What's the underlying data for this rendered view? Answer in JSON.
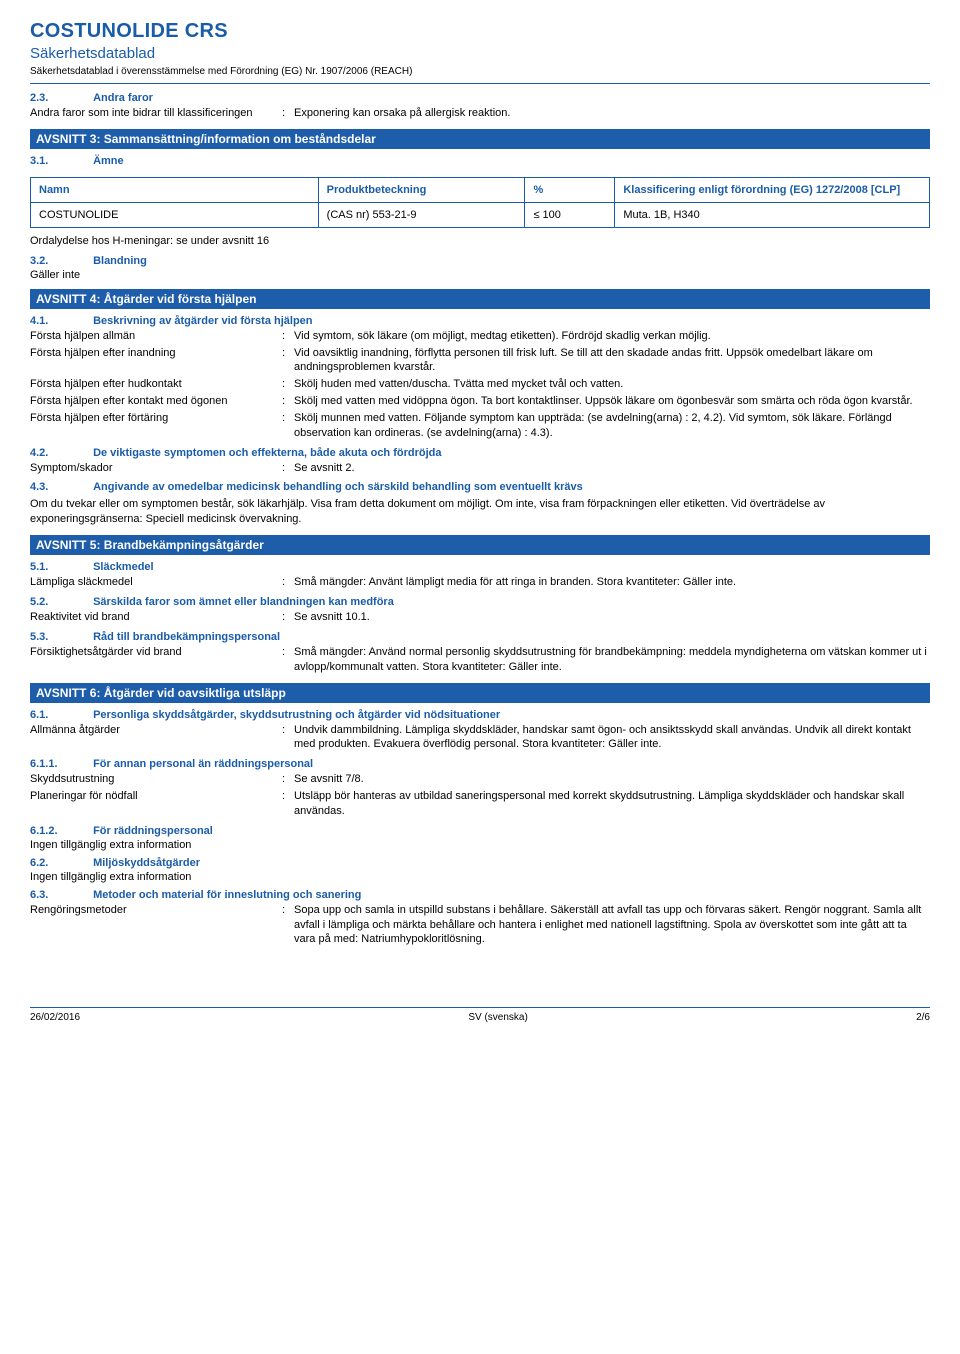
{
  "header": {
    "title": "COSTUNOLIDE CRS",
    "subtitle": "Säkerhetsdatablad",
    "compliance": "Säkerhetsdatablad i överensstämmelse med Förordning (EG) Nr. 1907/2006 (REACH)"
  },
  "s23": {
    "num": "2.3.",
    "title": "Andra faror",
    "label": "Andra faror som inte bidrar till klassificeringen",
    "value": "Exponering kan orsaka på allergisk reaktion."
  },
  "bar3": "AVSNITT 3: Sammansättning/information om beståndsdelar",
  "s31": {
    "num": "3.1.",
    "title": "Ämne"
  },
  "table": {
    "headers": {
      "name": "Namn",
      "ident": "Produktbeteckning",
      "pct": "%",
      "class": "Klassificering enligt förordning (EG) 1272/2008 [CLP]"
    },
    "row": {
      "name": "COSTUNOLIDE",
      "ident": "(CAS nr) 553-21-9",
      "pct": "≤ 100",
      "class": "Muta. 1B, H340"
    }
  },
  "ordaly": "Ordalydelse hos H-meningar: se under avsnitt 16",
  "s32": {
    "num": "3.2.",
    "title": "Blandning",
    "note": "Gäller inte"
  },
  "bar4": "AVSNITT 4: Åtgärder vid första hjälpen",
  "s41": {
    "num": "4.1.",
    "title": "Beskrivning av åtgärder vid första hjälpen",
    "rows": [
      {
        "label": "Första hjälpen allmän",
        "value": "Vid symtom, sök läkare (om möjligt, medtag etiketten). Fördröjd skadlig verkan möjlig."
      },
      {
        "label": "Första hjälpen efter inandning",
        "value": "Vid oavsiktlig inandning, förflytta personen till frisk luft. Se till att den skadade andas fritt. Uppsök omedelbart läkare om andningsproblemen kvarstår."
      },
      {
        "label": "Första hjälpen efter hudkontakt",
        "value": "Skölj huden med vatten/duscha. Tvätta med mycket tvål och vatten."
      },
      {
        "label": "Första hjälpen efter kontakt med ögonen",
        "value": "Skölj med vatten med vidöppna ögon. Ta bort kontaktlinser. Uppsök läkare om ögonbesvär som smärta och röda ögon kvarstår."
      },
      {
        "label": "Första hjälpen efter förtäring",
        "value": "Skölj munnen med vatten. Följande symptom kan uppträda: (se avdelning(arna) : 2, 4.2). Vid symtom, sök läkare. Förlängd observation kan ordineras. (se avdelning(arna) : 4.3)."
      }
    ]
  },
  "s42": {
    "num": "4.2.",
    "title": "De viktigaste symptomen och effekterna, både akuta och fördröjda",
    "label": "Symptom/skador",
    "value": "Se avsnitt 2."
  },
  "s43": {
    "num": "4.3.",
    "title": "Angivande av omedelbar medicinsk behandling och särskild behandling som eventuellt krävs",
    "body": "Om du tvekar eller om symptomen består, sök läkarhjälp. Visa fram detta dokument om möjligt. Om inte, visa fram förpackningen eller etiketten. Vid överträdelse av exponeringsgränserna: Speciell medicinsk övervakning."
  },
  "bar5": "AVSNITT 5: Brandbekämpningsåtgärder",
  "s51": {
    "num": "5.1.",
    "title": "Släckmedel",
    "label": "Lämpliga släckmedel",
    "value": "Små mängder: Använt lämpligt media för att ringa in branden. Stora kvantiteter: Gäller inte."
  },
  "s52": {
    "num": "5.2.",
    "title": "Särskilda faror som ämnet eller blandningen kan medföra",
    "label": "Reaktivitet vid brand",
    "value": "Se avsnitt 10.1."
  },
  "s53": {
    "num": "5.3.",
    "title": "Råd till brandbekämpningspersonal",
    "label": "Försiktighetsåtgärder vid brand",
    "value": "Små mängder: Använd normal personlig skyddsutrustning för brandbekämpning: meddela myndigheterna om vätskan kommer ut i avlopp/kommunalt vatten. Stora kvantiteter: Gäller inte."
  },
  "bar6": "AVSNITT 6: Åtgärder vid oavsiktliga utsläpp",
  "s61": {
    "num": "6.1.",
    "title": "Personliga skyddsåtgärder, skyddsutrustning och åtgärder vid nödsituationer",
    "label": "Allmänna åtgärder",
    "value": "Undvik dammbildning. Lämpliga skyddskläder, handskar samt ögon- och ansiktsskydd skall användas. Undvik all direkt kontakt med produkten. Evakuera överflödig personal. Stora kvantiteter: Gäller inte."
  },
  "s611": {
    "num": "6.1.1.",
    "title": "För annan personal än räddningspersonal",
    "rows": [
      {
        "label": "Skyddsutrustning",
        "value": "Se avsnitt 7/8."
      },
      {
        "label": "Planeringar för nödfall",
        "value": "Utsläpp bör hanteras av utbildad saneringspersonal med korrekt skyddsutrustning. Lämpliga skyddskläder och handskar skall användas."
      }
    ]
  },
  "s612": {
    "num": "6.1.2.",
    "title": "För räddningspersonal",
    "note": "Ingen tillgänglig extra information"
  },
  "s62": {
    "num": "6.2.",
    "title": "Miljöskyddsåtgärder",
    "note": "Ingen tillgänglig extra information"
  },
  "s63": {
    "num": "6.3.",
    "title": "Metoder och material för inneslutning och sanering",
    "label": "Rengöringsmetoder",
    "value": "Sopa upp och samla in utspilld substans i behållare. Säkerställ att avfall tas upp och förvaras säkert. Rengör noggrant. Samla allt avfall i lämpliga och märkta behållare och hantera i enlighet med nationell lagstiftning. Spola av överskottet som inte gått att ta vara på med: Natriumhypokloritlösning."
  },
  "footer": {
    "date": "26/02/2016",
    "lang": "SV (svenska)",
    "page": "2/6"
  }
}
